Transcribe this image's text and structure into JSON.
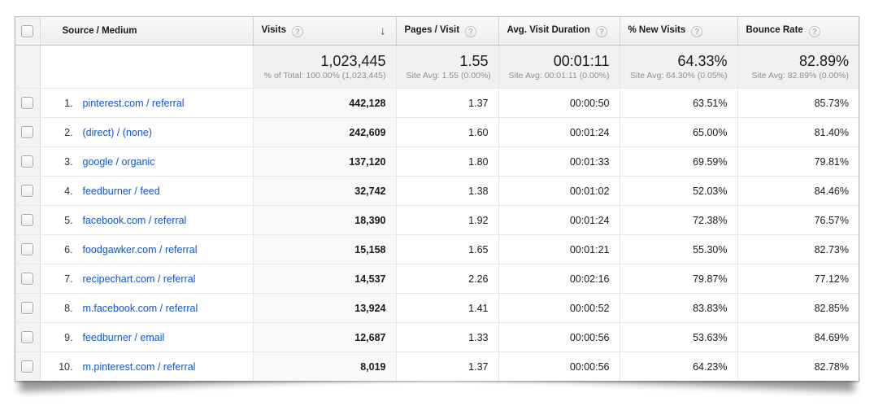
{
  "icons": {
    "help_glyph": "?",
    "sort_desc_glyph": "↓"
  },
  "colors": {
    "link_blue": "#1155cc",
    "sorted_column_bg": "#f9f9f9",
    "header_bg": "#efefef"
  },
  "header": {
    "columns": [
      {
        "label": "Source / Medium"
      },
      {
        "label": "Visits",
        "sorted": "desc"
      },
      {
        "label": "Pages / Visit"
      },
      {
        "label": "Avg. Visit Duration"
      },
      {
        "label": "% New Visits"
      },
      {
        "label": "Bounce Rate"
      }
    ]
  },
  "summary": {
    "visits": {
      "value": "1,023,445",
      "sub": "% of Total: 100.00% (1,023,445)"
    },
    "pages_per_visit": {
      "value": "1.55",
      "sub": "Site Avg: 1.55 (0.00%)"
    },
    "avg_visit_duration": {
      "value": "00:01:11",
      "sub": "Site Avg: 00:01:11 (0.00%)"
    },
    "pct_new_visits": {
      "value": "64.33%",
      "sub": "Site Avg: 64.30% (0.05%)"
    },
    "bounce_rate": {
      "value": "82.89%",
      "sub": "Site Avg: 82.89% (0.00%)"
    }
  },
  "rows": [
    {
      "rank": "1.",
      "source": "pinterest.com / referral",
      "visits": "442,128",
      "pages": "1.37",
      "duration": "00:00:50",
      "new_visits": "63.51%",
      "bounce": "85.73%"
    },
    {
      "rank": "2.",
      "source": "(direct) / (none)",
      "visits": "242,609",
      "pages": "1.60",
      "duration": "00:01:24",
      "new_visits": "65.00%",
      "bounce": "81.40%"
    },
    {
      "rank": "3.",
      "source": "google / organic",
      "visits": "137,120",
      "pages": "1.80",
      "duration": "00:01:33",
      "new_visits": "69.59%",
      "bounce": "79.81%"
    },
    {
      "rank": "4.",
      "source": "feedburner / feed",
      "visits": "32,742",
      "pages": "1.38",
      "duration": "00:01:02",
      "new_visits": "52.03%",
      "bounce": "84.46%"
    },
    {
      "rank": "5.",
      "source": "facebook.com / referral",
      "visits": "18,390",
      "pages": "1.92",
      "duration": "00:01:24",
      "new_visits": "72.38%",
      "bounce": "76.57%"
    },
    {
      "rank": "6.",
      "source": "foodgawker.com / referral",
      "visits": "15,158",
      "pages": "1.65",
      "duration": "00:01:21",
      "new_visits": "55.30%",
      "bounce": "82.73%"
    },
    {
      "rank": "7.",
      "source": "recipechart.com / referral",
      "visits": "14,537",
      "pages": "2.26",
      "duration": "00:02:16",
      "new_visits": "79.87%",
      "bounce": "77.12%"
    },
    {
      "rank": "8.",
      "source": "m.facebook.com / referral",
      "visits": "13,924",
      "pages": "1.41",
      "duration": "00:00:52",
      "new_visits": "83.83%",
      "bounce": "82.85%"
    },
    {
      "rank": "9.",
      "source": "feedburner / email",
      "visits": "12,687",
      "pages": "1.33",
      "duration": "00:00:56",
      "new_visits": "53.63%",
      "bounce": "84.69%"
    },
    {
      "rank": "10.",
      "source": "m.pinterest.com / referral",
      "visits": "8,019",
      "pages": "1.37",
      "duration": "00:00:56",
      "new_visits": "64.23%",
      "bounce": "82.78%"
    }
  ]
}
